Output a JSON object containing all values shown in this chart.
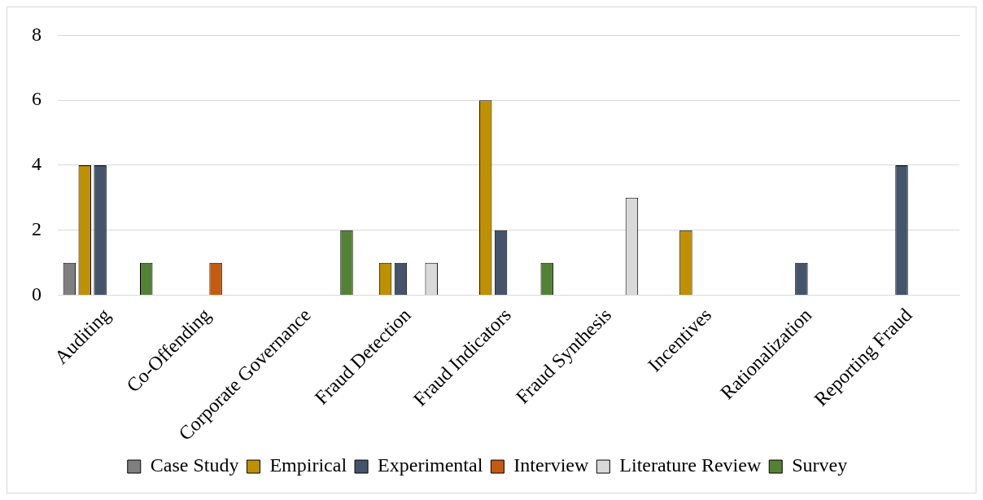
{
  "chart_data": {
    "type": "bar",
    "categories": [
      "Auditing",
      "Co-Offending",
      "Corporate Governance",
      "Fraud Detection",
      "Fraud Indicators",
      "Fraud Synthesis",
      "Incentives",
      "Rationalization",
      "Reporting Fraud"
    ],
    "series": [
      {
        "name": "Case Study",
        "color": "#7f7f7f",
        "values": [
          1,
          null,
          null,
          null,
          null,
          null,
          null,
          null,
          null
        ]
      },
      {
        "name": "Empirical",
        "color": "#bf9000",
        "values": [
          4,
          null,
          null,
          1,
          6,
          null,
          2,
          null,
          null
        ]
      },
      {
        "name": "Experimental",
        "color": "#44546a",
        "values": [
          4,
          null,
          null,
          1,
          2,
          null,
          null,
          1,
          4
        ]
      },
      {
        "name": "Interview",
        "color": "#c55a11",
        "values": [
          null,
          1,
          null,
          null,
          null,
          null,
          null,
          null,
          null
        ]
      },
      {
        "name": "Literature Review",
        "color": "#d9d9d9",
        "values": [
          null,
          null,
          null,
          1,
          null,
          3,
          null,
          null,
          null
        ]
      },
      {
        "name": "Survey",
        "color": "#548235",
        "values": [
          1,
          null,
          2,
          null,
          1,
          null,
          null,
          null,
          null
        ]
      }
    ],
    "ylim": [
      0,
      8
    ],
    "yticks": [
      0,
      2,
      4,
      6,
      8
    ],
    "grid": "y",
    "legend": "bottom"
  }
}
